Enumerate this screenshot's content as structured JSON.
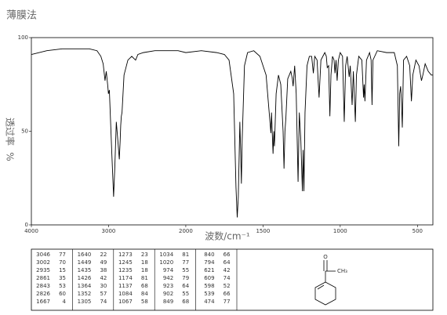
{
  "chart_data": {
    "type": "line",
    "title": "薄膜法",
    "xlabel": "波数/cm⁻¹",
    "ylabel": "透过率",
    "ylabel_unit": "%",
    "color": "#000000",
    "xlim": [
      4000,
      400
    ],
    "xticks": [
      4000,
      3000,
      2000,
      1500,
      1000,
      500
    ],
    "ylim": [
      0,
      100
    ],
    "yticks": [
      0,
      50,
      100
    ],
    "x": [
      4000,
      3800,
      3600,
      3400,
      3250,
      3150,
      3100,
      3070,
      3046,
      3030,
      3010,
      3002,
      2990,
      2960,
      2935,
      2920,
      2900,
      2880,
      2861,
      2850,
      2843,
      2835,
      2826,
      2800,
      2750,
      2700,
      2650,
      2620,
      2550,
      2400,
      2200,
      2100,
      2000,
      1900,
      1800,
      1750,
      1720,
      1690,
      1675,
      1667,
      1660,
      1650,
      1645,
      1640,
      1635,
      1620,
      1600,
      1560,
      1520,
      1500,
      1480,
      1460,
      1449,
      1445,
      1435,
      1430,
      1426,
      1415,
      1400,
      1385,
      1370,
      1364,
      1358,
      1352,
      1340,
      1320,
      1310,
      1305,
      1295,
      1285,
      1273,
      1265,
      1255,
      1245,
      1240,
      1235,
      1228,
      1215,
      1200,
      1185,
      1174,
      1165,
      1150,
      1137,
      1125,
      1100,
      1090,
      1084,
      1075,
      1067,
      1060,
      1050,
      1040,
      1034,
      1027,
      1020,
      1012,
      1000,
      985,
      974,
      965,
      955,
      942,
      935,
      923,
      915,
      902,
      895,
      880,
      860,
      849,
      845,
      840,
      830,
      810,
      800,
      794,
      788,
      760,
      700,
      650,
      630,
      621,
      615,
      609,
      603,
      598,
      590,
      570,
      550,
      539,
      530,
      510,
      490,
      480,
      474,
      465,
      450,
      430,
      410,
      400
    ],
    "values": [
      91,
      93,
      94,
      94,
      94,
      93,
      90,
      86,
      77,
      82,
      74,
      70,
      72,
      40,
      15,
      30,
      55,
      45,
      35,
      45,
      53,
      58,
      60,
      80,
      88,
      90,
      88,
      91,
      92,
      93,
      93,
      93,
      92,
      93,
      92,
      91,
      88,
      70,
      20,
      4,
      15,
      55,
      40,
      22,
      45,
      85,
      92,
      93,
      90,
      85,
      80,
      60,
      49,
      60,
      38,
      50,
      42,
      70,
      80,
      75,
      50,
      30,
      50,
      57,
      78,
      82,
      78,
      74,
      85,
      70,
      23,
      60,
      45,
      18,
      40,
      18,
      60,
      85,
      90,
      90,
      81,
      90,
      88,
      68,
      88,
      92,
      90,
      84,
      85,
      58,
      80,
      90,
      88,
      81,
      88,
      77,
      88,
      92,
      90,
      55,
      85,
      90,
      79,
      85,
      64,
      82,
      55,
      80,
      90,
      88,
      68,
      75,
      66,
      88,
      92,
      88,
      64,
      88,
      93,
      92,
      92,
      85,
      42,
      70,
      74,
      65,
      52,
      88,
      90,
      85,
      66,
      80,
      88,
      85,
      80,
      77,
      80,
      86,
      82,
      80,
      80
    ]
  },
  "peak_table": {
    "columns": [
      [
        [
          3046,
          77
        ],
        [
          3002,
          70
        ],
        [
          2935,
          15
        ],
        [
          2861,
          35
        ],
        [
          2843,
          53
        ],
        [
          2826,
          60
        ],
        [
          1667,
          4
        ]
      ],
      [
        [
          1640,
          22
        ],
        [
          1449,
          49
        ],
        [
          1435,
          38
        ],
        [
          1426,
          42
        ],
        [
          1364,
          30
        ],
        [
          1352,
          57
        ],
        [
          1305,
          74
        ]
      ],
      [
        [
          1273,
          23
        ],
        [
          1245,
          18
        ],
        [
          1235,
          18
        ],
        [
          1174,
          81
        ],
        [
          1137,
          68
        ],
        [
          1084,
          84
        ],
        [
          1067,
          58
        ]
      ],
      [
        [
          1034,
          81
        ],
        [
          1020,
          77
        ],
        [
          974,
          55
        ],
        [
          942,
          79
        ],
        [
          923,
          64
        ],
        [
          902,
          55
        ],
        [
          849,
          68
        ]
      ],
      [
        [
          840,
          66
        ],
        [
          794,
          64
        ],
        [
          621,
          42
        ],
        [
          609,
          74
        ],
        [
          598,
          52
        ],
        [
          539,
          66
        ],
        [
          474,
          77
        ]
      ]
    ]
  },
  "structure": {
    "oxygen": "O",
    "methyl": "CH₃"
  }
}
